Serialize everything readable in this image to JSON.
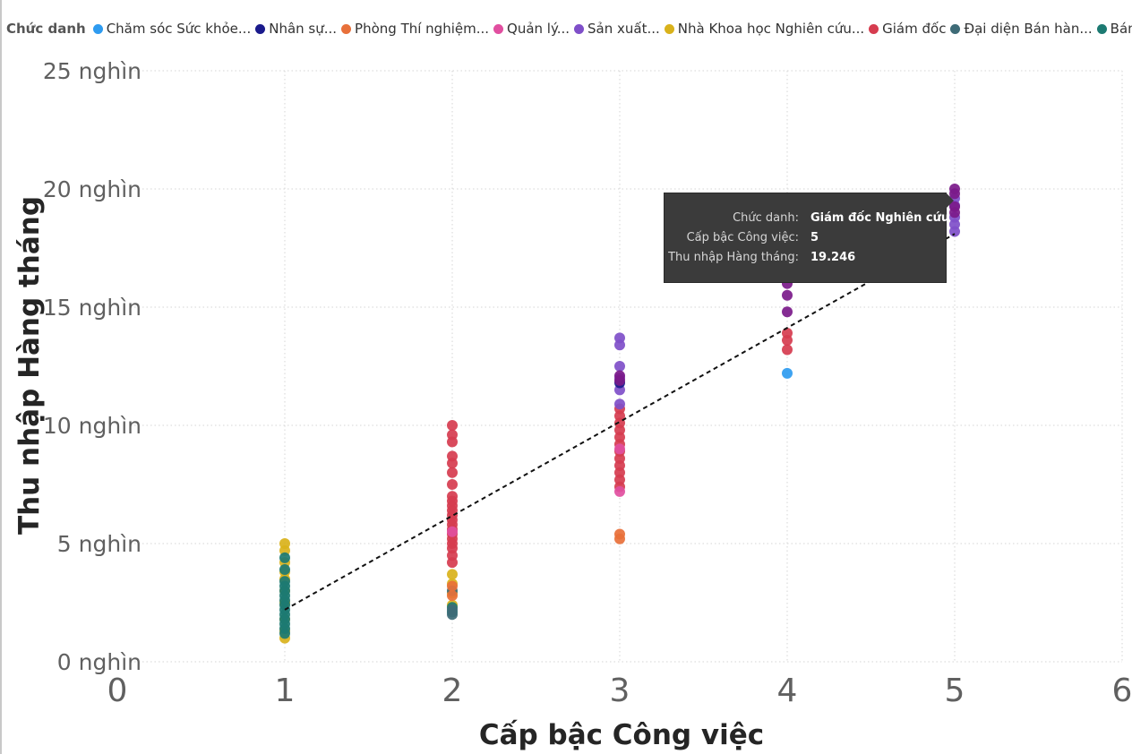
{
  "legend": {
    "title": "Chức danh",
    "items": [
      {
        "label": "Chăm sóc Sức khỏe...",
        "color": "#2e9bf0"
      },
      {
        "label": "Nhân sự...",
        "color": "#1a1a8c"
      },
      {
        "label": "Phòng Thí nghiệm...",
        "color": "#e8703a"
      },
      {
        "label": "Quản lý...",
        "color": "#e14fa0"
      },
      {
        "label": "Sản xuất...",
        "color": "#7f4fc9"
      },
      {
        "label": "Nhà Khoa học Nghiên cứu...",
        "color": "#d9b21b"
      },
      {
        "label": "Giám đốc",
        "color": "#d63c4f"
      },
      {
        "label": "Đại diện Bán hàn...",
        "color": "#3e6b77"
      },
      {
        "label": "Bán hàng...",
        "color": "#1c7a72"
      }
    ]
  },
  "tooltip": {
    "rows": [
      {
        "label": "Chức danh:",
        "value": "Giám đốc Nghiên cứu"
      },
      {
        "label": "Cấp bậc Công việc:",
        "value": "5"
      },
      {
        "label": "Thu nhập Hàng tháng:",
        "value": "19.246"
      }
    ]
  },
  "chart_data": {
    "type": "scatter",
    "xlabel": "Cấp bậc Công việc",
    "ylabel": "Thu nhập Hàng tháng",
    "xlim": [
      0,
      6
    ],
    "ylim": [
      0,
      25000
    ],
    "x_ticks": [
      0,
      1,
      2,
      3,
      4,
      5,
      6
    ],
    "y_ticks": [
      {
        "value": 0,
        "label": "0 nghìn"
      },
      {
        "value": 5000,
        "label": "5 nghìn"
      },
      {
        "value": 10000,
        "label": "10 nghìn"
      },
      {
        "value": 15000,
        "label": "15 nghìn"
      },
      {
        "value": 20000,
        "label": "20 nghìn"
      },
      {
        "value": 25000,
        "label": "25 nghìn"
      }
    ],
    "grid": true,
    "trend_line": {
      "x": [
        1,
        5
      ],
      "y": [
        2200,
        18100
      ]
    },
    "series": [
      {
        "name": "Nhà Khoa học Nghiên cứu...",
        "color": "#d9b21b",
        "points": [
          [
            1,
            1000
          ],
          [
            1,
            1300
          ],
          [
            1,
            1800
          ],
          [
            1,
            2500
          ],
          [
            1,
            3000
          ],
          [
            1,
            3500
          ],
          [
            1,
            3800
          ],
          [
            1,
            4200
          ],
          [
            1,
            4700
          ],
          [
            1,
            5000
          ],
          [
            2,
            2400
          ],
          [
            2,
            2900
          ],
          [
            2,
            3300
          ],
          [
            2,
            3700
          ]
        ]
      },
      {
        "name": "Bán hàng...",
        "color": "#1c7a72",
        "points": [
          [
            1,
            1200
          ],
          [
            1,
            1400
          ],
          [
            1,
            1600
          ],
          [
            1,
            1800
          ],
          [
            1,
            2000
          ],
          [
            1,
            2200
          ],
          [
            1,
            2400
          ],
          [
            1,
            2600
          ],
          [
            1,
            2800
          ],
          [
            1,
            3000
          ],
          [
            1,
            3200
          ],
          [
            1,
            3400
          ],
          [
            1,
            3900
          ],
          [
            1,
            4400
          ],
          [
            2,
            2100
          ],
          [
            2,
            2300
          ]
        ]
      },
      {
        "name": "Đại diện Bán hàn...",
        "color": "#3e6b77",
        "points": [
          [
            2,
            2000
          ],
          [
            2,
            2200
          ],
          [
            2,
            3000
          ]
        ]
      },
      {
        "name": "Phòng Thí nghiệm...",
        "color": "#e8703a",
        "points": [
          [
            2,
            2800
          ],
          [
            2,
            3200
          ],
          [
            3,
            5200
          ],
          [
            3,
            5400
          ]
        ]
      },
      {
        "name": "Giám đốc",
        "color": "#d63c4f",
        "points": [
          [
            2,
            4200
          ],
          [
            2,
            4500
          ],
          [
            2,
            4800
          ],
          [
            2,
            5000
          ],
          [
            2,
            5200
          ],
          [
            2,
            5400
          ],
          [
            2,
            5600
          ],
          [
            2,
            5800
          ],
          [
            2,
            6000
          ],
          [
            2,
            6200
          ],
          [
            2,
            6400
          ],
          [
            2,
            6600
          ],
          [
            2,
            6800
          ],
          [
            2,
            7000
          ],
          [
            2,
            7500
          ],
          [
            2,
            8000
          ],
          [
            2,
            8400
          ],
          [
            2,
            8700
          ],
          [
            2,
            9300
          ],
          [
            2,
            9600
          ],
          [
            2,
            10000
          ],
          [
            3,
            7400
          ],
          [
            3,
            7700
          ],
          [
            3,
            8000
          ],
          [
            3,
            8300
          ],
          [
            3,
            8600
          ],
          [
            3,
            8900
          ],
          [
            3,
            9200
          ],
          [
            3,
            9500
          ],
          [
            3,
            9800
          ],
          [
            3,
            10100
          ],
          [
            3,
            10400
          ],
          [
            3,
            10700
          ],
          [
            4,
            13200
          ],
          [
            4,
            13600
          ],
          [
            4,
            13900
          ]
        ]
      },
      {
        "name": "Quản lý...",
        "color": "#e14fa0",
        "points": [
          [
            2,
            5500
          ],
          [
            3,
            7200
          ],
          [
            3,
            9000
          ]
        ]
      },
      {
        "name": "Sản xuất...",
        "color": "#7f4fc9",
        "points": [
          [
            3,
            10900
          ],
          [
            3,
            11500
          ],
          [
            3,
            12000
          ],
          [
            3,
            12500
          ],
          [
            3,
            13400
          ],
          [
            3,
            13700
          ],
          [
            5,
            18200
          ],
          [
            5,
            18500
          ],
          [
            5,
            18800
          ],
          [
            5,
            19300
          ],
          [
            5,
            19600
          ]
        ]
      },
      {
        "name": "Nhân sự...",
        "color": "#1a1a8c",
        "points": [
          [
            3,
            11800
          ]
        ]
      },
      {
        "name": "Chăm sóc Sức khỏe...",
        "color": "#2e9bf0",
        "points": [
          [
            4,
            12200
          ]
        ]
      },
      {
        "name": "Giám đốc Nghiên cứu",
        "color": "#7b1a8a",
        "points": [
          [
            3,
            11900
          ],
          [
            3,
            12100
          ],
          [
            4,
            14800
          ],
          [
            4,
            15500
          ],
          [
            4,
            16000
          ],
          [
            5,
            19000
          ],
          [
            5,
            19246
          ],
          [
            5,
            19800
          ],
          [
            5,
            20000
          ]
        ]
      }
    ]
  }
}
